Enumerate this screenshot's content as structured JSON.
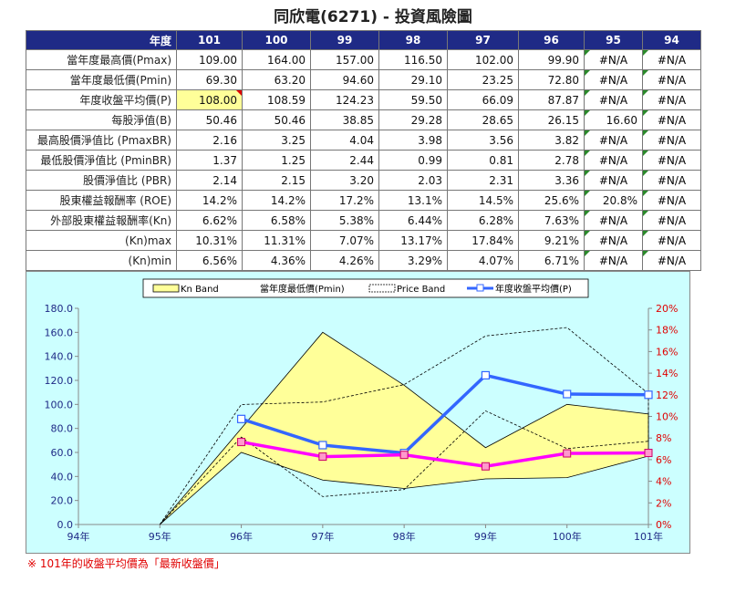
{
  "title": "同欣電(6271) -  投資風險圖",
  "table": {
    "corner": "年度",
    "years": [
      "101",
      "100",
      "99",
      "98",
      "97",
      "96",
      "95",
      "94"
    ],
    "rows": [
      {
        "label": "當年度最高價(Pmax)",
        "values": [
          "109.00",
          "164.00",
          "157.00",
          "116.50",
          "102.00",
          "99.90",
          "#N/A",
          "#N/A"
        ]
      },
      {
        "label": "當年度最低價(Pmin)",
        "values": [
          "69.30",
          "63.20",
          "94.60",
          "29.10",
          "23.25",
          "72.80",
          "#N/A",
          "#N/A"
        ]
      },
      {
        "label": "年度收盤平均價(P)",
        "values": [
          "108.00",
          "108.59",
          "124.23",
          "59.50",
          "66.09",
          "87.87",
          "#N/A",
          "#N/A"
        ]
      },
      {
        "label": "每股淨值(B)",
        "values": [
          "50.46",
          "50.46",
          "38.85",
          "29.28",
          "28.65",
          "26.15",
          "16.60",
          "#N/A"
        ]
      },
      {
        "label": "最高股價淨值比 (PmaxBR)",
        "values": [
          "2.16",
          "3.25",
          "4.04",
          "3.98",
          "3.56",
          "3.82",
          "#N/A",
          "#N/A"
        ]
      },
      {
        "label": "最低股價淨值比 (PminBR)",
        "values": [
          "1.37",
          "1.25",
          "2.44",
          "0.99",
          "0.81",
          "2.78",
          "#N/A",
          "#N/A"
        ]
      },
      {
        "label": "股價淨值比 (PBR)",
        "values": [
          "2.14",
          "2.15",
          "3.20",
          "2.03",
          "2.31",
          "3.36",
          "#N/A",
          "#N/A"
        ]
      },
      {
        "label": "股東權益報酬率 (ROE)",
        "values": [
          "14.2%",
          "14.2%",
          "17.2%",
          "13.1%",
          "14.5%",
          "25.6%",
          "20.8%",
          "#N/A"
        ]
      },
      {
        "label": "外部股東權益報酬率(Kn)",
        "values": [
          "6.62%",
          "6.58%",
          "5.38%",
          "6.44%",
          "6.28%",
          "7.63%",
          "#N/A",
          "#N/A"
        ]
      },
      {
        "label": "(Kn)max",
        "values": [
          "10.31%",
          "11.31%",
          "7.07%",
          "13.17%",
          "17.84%",
          "9.21%",
          "#N/A",
          "#N/A"
        ]
      },
      {
        "label": "(Kn)min",
        "values": [
          "6.56%",
          "4.36%",
          "4.26%",
          "3.29%",
          "4.07%",
          "6.71%",
          "#N/A",
          "#N/A"
        ]
      }
    ]
  },
  "legend": {
    "kn_band": "Kn Band",
    "pmin": "當年度最低價(Pmin)",
    "price_band": "Price Band",
    "avg_price": "年度收盤平均價(P)"
  },
  "note": "※ 101年的收盤平均價為「最新收盤價」",
  "colors": {
    "header_bg": "#1f2a86",
    "chart_bg": "#ccffff",
    "kn_band_fill": "#ffff99",
    "avg_line": "#3366ff",
    "kn_line": "#ff00ff",
    "right_axis": "#e00000"
  },
  "chart_data": {
    "type": "line",
    "x": [
      "94年",
      "95年",
      "96年",
      "97年",
      "98年",
      "99年",
      "100年",
      "101年"
    ],
    "ylim": [
      0,
      180
    ],
    "yticks": [
      "0.0",
      "20.0",
      "40.0",
      "60.0",
      "80.0",
      "100.0",
      "120.0",
      "140.0",
      "160.0",
      "180.0"
    ],
    "y2lim": [
      0,
      0.2
    ],
    "y2ticks": [
      "0%",
      "2%",
      "4%",
      "6%",
      "8%",
      "10%",
      "12%",
      "14%",
      "16%",
      "18%",
      "20%"
    ],
    "grid": true,
    "legend_position": "top",
    "series": [
      {
        "name": "Kn Band",
        "type": "area_band",
        "upper": [
          null,
          0,
          80,
          160,
          116,
          64,
          100,
          92
        ],
        "lower": [
          null,
          0,
          60,
          37,
          30,
          38,
          39,
          57
        ]
      },
      {
        "name": "Price Band",
        "type": "dashed_band",
        "upper": [
          null,
          0,
          99.9,
          102,
          116.5,
          157,
          164,
          109
        ],
        "lower": [
          null,
          0,
          72.8,
          23.25,
          29.1,
          94.6,
          63.2,
          69.3
        ]
      },
      {
        "name": "年度收盤平均價(P)",
        "axis": "left",
        "values": [
          null,
          null,
          87.87,
          66.09,
          59.5,
          124.23,
          108.59,
          108.0
        ]
      },
      {
        "name": "Kn",
        "axis": "right",
        "values": [
          null,
          null,
          0.0763,
          0.0628,
          0.0644,
          0.0538,
          0.0658,
          0.0662
        ]
      }
    ]
  }
}
